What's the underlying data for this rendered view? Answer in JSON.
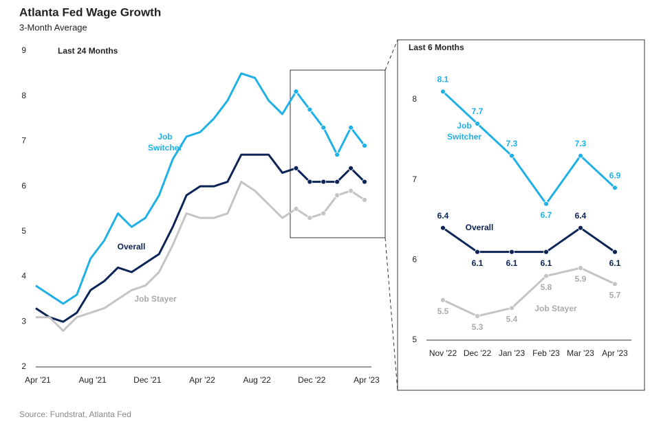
{
  "title": "Atlanta Fed Wage Growth",
  "subtitle": "3-Month Average",
  "source": "Source: Fundstrat, Atlanta Fed",
  "chart_data": [
    {
      "type": "line",
      "annotation": "Last 24 Months",
      "categories": [
        "Apr '21",
        null,
        null,
        null,
        "Aug '21",
        null,
        null,
        null,
        "Dec '21",
        null,
        null,
        null,
        "Apr '22",
        null,
        null,
        null,
        "Aug '22",
        null,
        null,
        null,
        "Dec '22",
        null,
        null,
        null,
        "Apr '23"
      ],
      "ylim": [
        2,
        9
      ],
      "yticks": [
        2,
        3,
        4,
        5,
        6,
        7,
        8,
        9
      ],
      "series": [
        {
          "name": "Job Switcher",
          "color": "#1fb0e6",
          "values": [
            3.8,
            3.6,
            3.4,
            3.6,
            4.4,
            4.8,
            5.4,
            5.1,
            5.3,
            5.8,
            6.6,
            7.1,
            7.2,
            7.5,
            7.9,
            8.5,
            8.4,
            7.9,
            7.6,
            8.1,
            7.7,
            7.3,
            6.7,
            7.3,
            6.9
          ]
        },
        {
          "name": "Overall",
          "color": "#0c2356",
          "values": [
            3.3,
            3.1,
            3.0,
            3.2,
            3.7,
            3.9,
            4.2,
            4.1,
            4.3,
            4.5,
            5.1,
            5.8,
            6.0,
            6.0,
            6.1,
            6.7,
            6.7,
            6.7,
            6.3,
            6.4,
            6.1,
            6.1,
            6.1,
            6.4,
            6.1
          ]
        },
        {
          "name": "Job Stayer",
          "color": "#c4c4c4",
          "values": [
            3.1,
            3.1,
            2.8,
            3.1,
            3.2,
            3.3,
            3.5,
            3.7,
            3.8,
            4.1,
            4.7,
            5.4,
            5.3,
            5.3,
            5.4,
            6.1,
            5.9,
            5.6,
            5.3,
            5.5,
            5.3,
            5.4,
            5.8,
            5.9,
            5.7
          ]
        }
      ]
    },
    {
      "type": "line",
      "annotation": "Last 6 Months",
      "categories": [
        "Nov '22",
        "Dec '22",
        "Jan '23",
        "Feb '23",
        "Mar '23",
        "Apr '23"
      ],
      "ylim": [
        5,
        8.3
      ],
      "yticks": [
        5,
        6,
        7,
        8
      ],
      "series": [
        {
          "name": "Job Switcher",
          "color": "#1fb0e6",
          "values": [
            8.1,
            7.7,
            7.3,
            6.7,
            7.3,
            6.9
          ]
        },
        {
          "name": "Overall",
          "color": "#0c2356",
          "values": [
            6.4,
            6.1,
            6.1,
            6.1,
            6.4,
            6.1
          ]
        },
        {
          "name": "Job Stayer",
          "color": "#c4c4c4",
          "values": [
            5.5,
            5.3,
            5.4,
            5.8,
            5.9,
            5.7
          ]
        }
      ]
    }
  ]
}
